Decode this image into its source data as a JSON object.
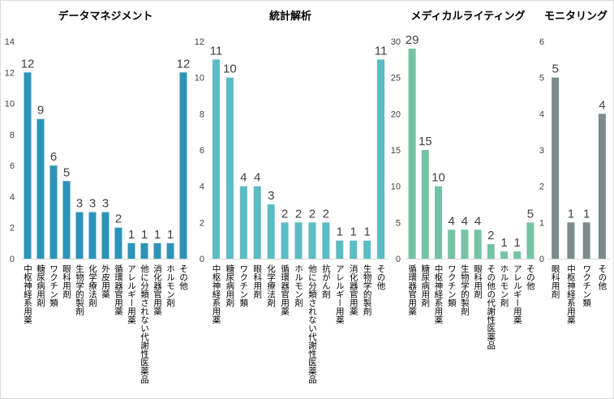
{
  "chart_data": [
    {
      "type": "bar",
      "title": "データマネジメント",
      "color": "#2e93b8",
      "ylim": [
        0,
        14
      ],
      "yticks": [
        0,
        2,
        4,
        6,
        8,
        10,
        12,
        14
      ],
      "categories": [
        "中枢神経系用薬",
        "糖尿病用剤",
        "ワクチン類",
        "眼科用剤",
        "生物学的製剤",
        "化学療法剤",
        "外皮用薬",
        "循環器官用薬",
        "アレルギー用薬",
        "他に分類されない代謝性医薬品",
        "消化器官用薬",
        "ホルモン剤",
        "その他"
      ],
      "values": [
        12,
        9,
        6,
        5,
        3,
        3,
        3,
        2,
        1,
        1,
        1,
        1,
        12
      ]
    },
    {
      "type": "bar",
      "title": "統計解析",
      "color": "#5bbcc4",
      "ylim": [
        0,
        12
      ],
      "yticks": [
        0,
        2,
        4,
        6,
        8,
        10,
        12
      ],
      "categories": [
        "中枢神経系用薬",
        "糖尿病用剤",
        "ワクチン類",
        "眼科用剤",
        "化学療法剤",
        "循環器官用薬",
        "ホルモン剤",
        "他に分類されない代謝性医薬品",
        "抗がん剤",
        "アレルギー用薬",
        "消化器官用薬",
        "生物学的製剤",
        "その他"
      ],
      "values": [
        11,
        10,
        4,
        4,
        3,
        2,
        2,
        2,
        2,
        1,
        1,
        1,
        11
      ]
    },
    {
      "type": "bar",
      "title": "メディカルライティング",
      "color": "#74c3a4",
      "ylim": [
        0,
        30
      ],
      "yticks": [
        0,
        5,
        10,
        15,
        20,
        25,
        30
      ],
      "categories": [
        "循環器官用薬",
        "糖尿病用剤",
        "中枢神経系用薬",
        "ワクチン類",
        "生物学的製剤",
        "眼科用剤",
        "その他の代謝性医薬品",
        "ホルモン剤",
        "アレルギー用薬",
        "その他"
      ],
      "values": [
        29,
        15,
        10,
        4,
        4,
        4,
        2,
        1,
        1,
        5
      ]
    },
    {
      "type": "bar",
      "title": "モニタリング",
      "color": "#7a8c8c",
      "ylim": [
        0,
        6
      ],
      "yticks": [
        0,
        1,
        2,
        3,
        4,
        5,
        6
      ],
      "categories": [
        "眼科用剤",
        "中枢神経系用薬",
        "ワクチン類",
        "その他"
      ],
      "values": [
        5,
        1,
        1,
        4
      ]
    }
  ]
}
